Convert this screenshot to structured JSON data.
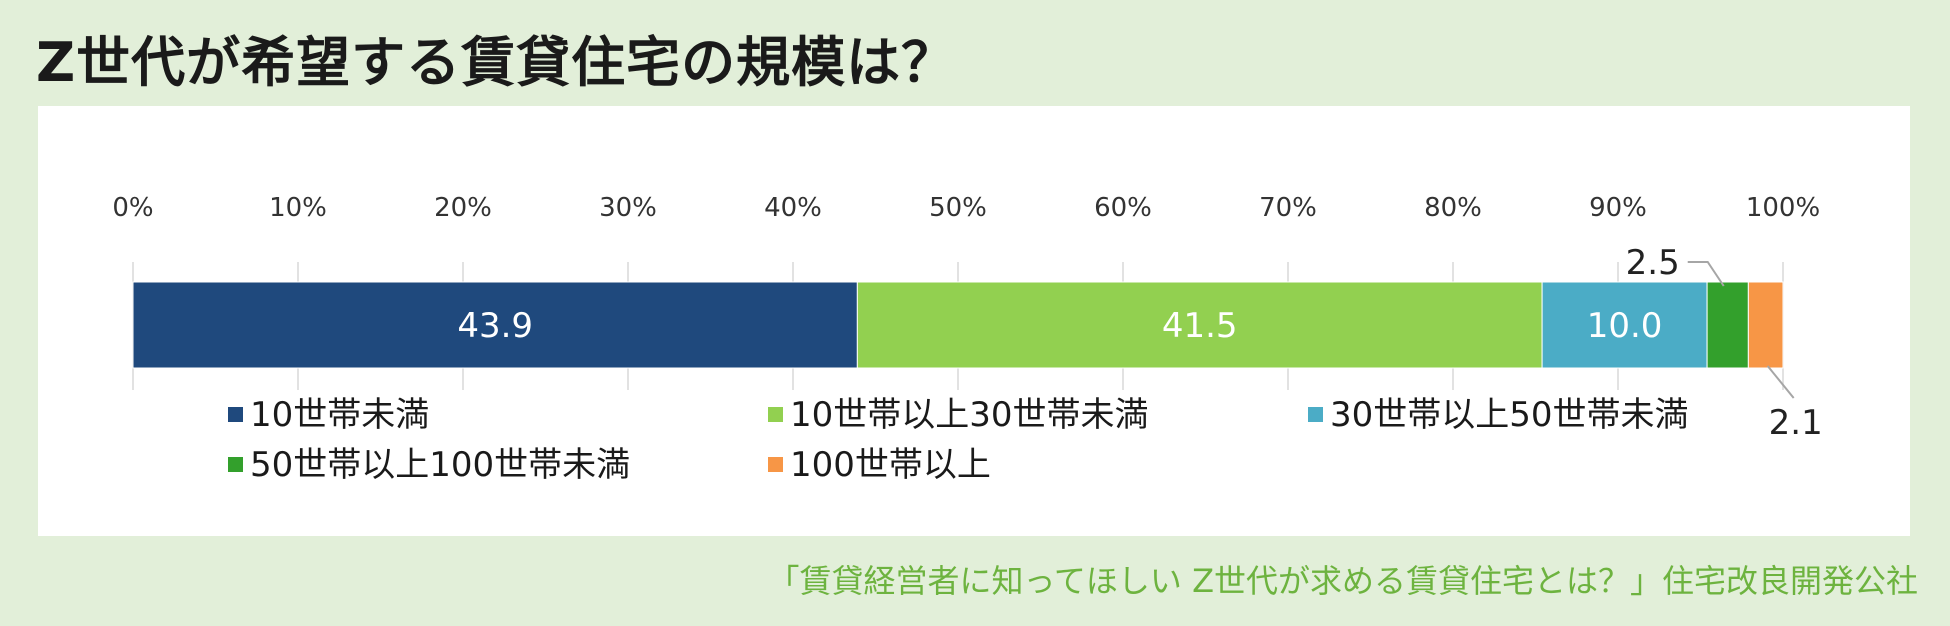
{
  "title": "Z世代が希望する賃貸住宅の規模は？",
  "source": "「賃貸経営者に知ってほしい Z世代が求める賃貸住宅とは？」住宅改良開発公社",
  "chart_data": {
    "type": "bar",
    "orientation": "horizontal",
    "stacked": true,
    "percent_axis": true,
    "xlim": [
      0,
      100
    ],
    "ticks": [
      "0%",
      "10%",
      "20%",
      "30%",
      "40%",
      "50%",
      "60%",
      "70%",
      "80%",
      "90%",
      "100%"
    ],
    "tick_values": [
      0,
      10,
      20,
      30,
      40,
      50,
      60,
      70,
      80,
      90,
      100
    ],
    "grid": false,
    "legend_position": "bottom",
    "series": [
      {
        "name": "10世帯未満",
        "value": 43.9,
        "label": "43.9",
        "color": "#1f497d",
        "label_color": "#ffffff",
        "label_position": "inside"
      },
      {
        "name": "10世帯以上30世帯未満",
        "value": 41.5,
        "label": "41.5",
        "color": "#92d050",
        "label_color": "#ffffff",
        "label_position": "inside"
      },
      {
        "name": "30世帯以上50世帯未満",
        "value": 10.0,
        "label": "10.0",
        "color": "#4bacc6",
        "label_color": "#ffffff",
        "label_position": "inside"
      },
      {
        "name": "50世帯以上100世帯未満",
        "value": 2.5,
        "label": "2.5",
        "color": "#33a02c",
        "label_color": "#222222",
        "label_position": "callout-above"
      },
      {
        "name": "100世帯以上",
        "value": 2.1,
        "label": "2.1",
        "color": "#f79646",
        "label_color": "#222222",
        "label_position": "callout-below"
      }
    ]
  }
}
